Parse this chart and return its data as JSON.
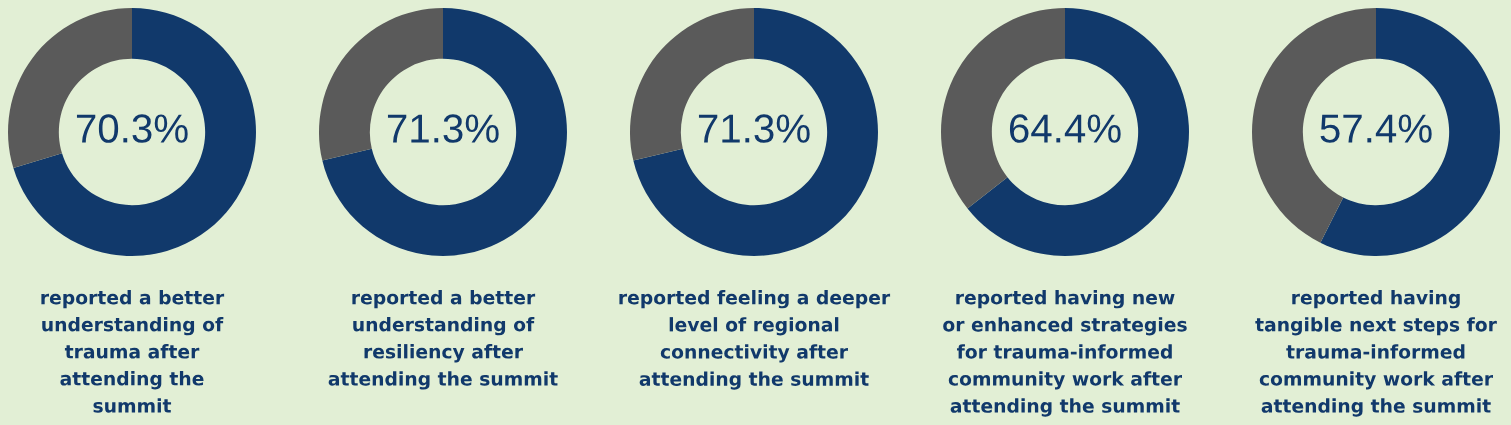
{
  "chart_data": [
    {
      "type": "donut",
      "title": "reported a better\nunderstanding of\ntrauma after\nattending the\nsummit",
      "categories": [
        null,
        null
      ],
      "values": [
        70.3,
        29.7
      ],
      "colors": [
        "#11396b",
        "#5a5a5a"
      ],
      "value_labels": [
        "70.3%",
        null
      ]
    },
    {
      "type": "donut",
      "title": "reported a better\nunderstanding of\nresiliency after\nattending the summit",
      "categories": [
        null,
        null
      ],
      "values": [
        71.3,
        28.7
      ],
      "colors": [
        "#11396b",
        "#5a5a5a"
      ],
      "value_labels": [
        "71.3%",
        null
      ]
    },
    {
      "type": "donut",
      "title": "reported feeling a deeper\nlevel of regional\nconnectivity after\nattending the summit",
      "categories": [
        null,
        null
      ],
      "values": [
        71.3,
        28.7
      ],
      "colors": [
        "#11396b",
        "#5a5a5a"
      ],
      "value_labels": [
        "71.3%",
        null
      ]
    },
    {
      "type": "donut",
      "title": "reported having new\nor enhanced strategies\nfor trauma-informed\ncommunity work after\nattending the summit",
      "categories": [
        null,
        null
      ],
      "values": [
        64.4,
        35.6
      ],
      "colors": [
        "#11396b",
        "#5a5a5a"
      ],
      "value_labels": [
        "64.4%",
        null
      ]
    },
    {
      "type": "donut",
      "title": "reported having\ntangible next steps for\ntrauma-informed\ncommunity work after\nattending the summit",
      "categories": [
        null,
        null
      ],
      "values": [
        57.4,
        42.6
      ],
      "colors": [
        "#11396b",
        "#5a5a5a"
      ],
      "value_labels": [
        "57.4%",
        null
      ]
    }
  ]
}
